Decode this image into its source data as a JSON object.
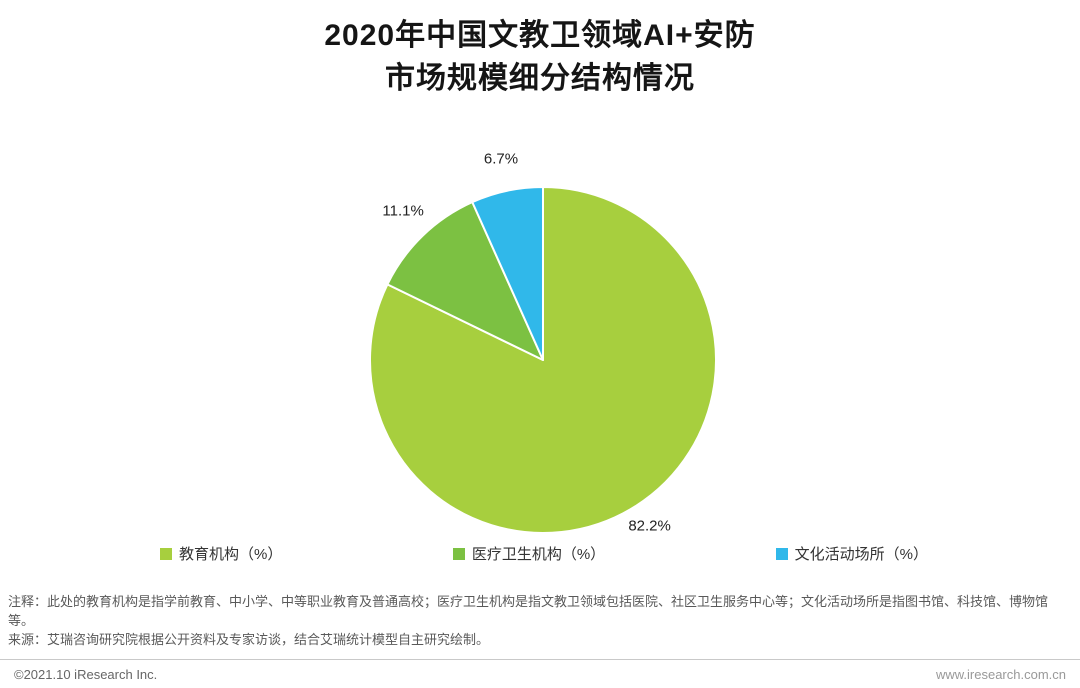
{
  "title": {
    "line1": "2020年中国文教卫领域AI+安防",
    "line2": "市场规模细分结构情况"
  },
  "chart_data": {
    "type": "pie",
    "title": "2020年中国文教卫领域AI+安防市场规模细分结构情况",
    "labels": [
      "教育机构（%）",
      "医疗卫生机构（%）",
      "文化活动场所（%）"
    ],
    "values": [
      82.2,
      11.1,
      6.7
    ],
    "data_labels": [
      "82.2%",
      "11.1%",
      "6.7%"
    ],
    "colors": [
      "#a7cf3e",
      "#7cc142",
      "#30b8ea"
    ],
    "start_angle_deg": 0,
    "direction": "clockwise",
    "legend_position": "bottom"
  },
  "notes": {
    "note1": "注释：此处的教育机构是指学前教育、中小学、中等职业教育及普通高校；医疗卫生机构是指文教卫领域包括医院、社区卫生服务中心等；文化活动场所是指图书馆、科技馆、博物馆等。",
    "note2": "来源：艾瑞咨询研究院根据公开资料及专家访谈，结合艾瑞统计模型自主研究绘制。"
  },
  "footer": {
    "left": "©2021.10 iResearch Inc.",
    "right": "www.iresearch.com.cn"
  }
}
